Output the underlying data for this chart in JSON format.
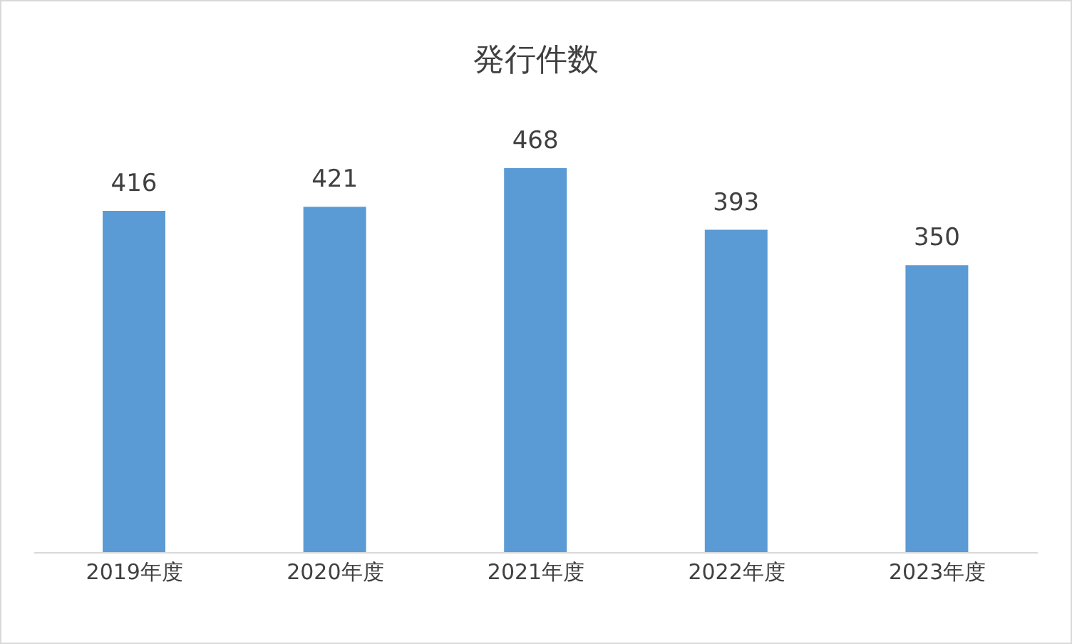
{
  "chart_data": {
    "type": "bar",
    "title": "発行件数",
    "categories": [
      "2019年度",
      "2020年度",
      "2021年度",
      "2022年度",
      "2023年度"
    ],
    "values": [
      416,
      421,
      468,
      393,
      350
    ],
    "color": "#5b9bd5",
    "data_labels": true
  }
}
